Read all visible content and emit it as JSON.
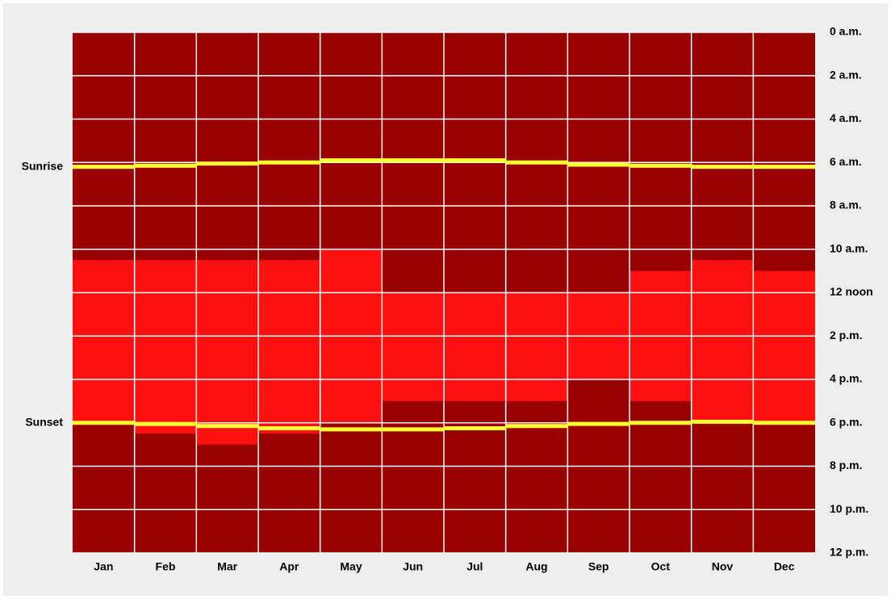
{
  "chart_data": {
    "type": "heatmap",
    "categories": [
      "Jan",
      "Feb",
      "Mar",
      "Apr",
      "May",
      "Jun",
      "Jul",
      "Aug",
      "Sep",
      "Oct",
      "Nov",
      "Dec"
    ],
    "ylim": [
      0,
      24
    ],
    "yticks": [
      {
        "value": 0,
        "label": "0 a.m."
      },
      {
        "value": 2,
        "label": "2 a.m."
      },
      {
        "value": 4,
        "label": "4 a.m."
      },
      {
        "value": 6,
        "label": "6 a.m."
      },
      {
        "value": 8,
        "label": "8 a.m."
      },
      {
        "value": 10,
        "label": "10 a.m."
      },
      {
        "value": 12,
        "label": "12 noon"
      },
      {
        "value": 14,
        "label": "2 p.m."
      },
      {
        "value": 16,
        "label": "4 p.m."
      },
      {
        "value": 18,
        "label": "6 p.m."
      },
      {
        "value": 20,
        "label": "8 p.m."
      },
      {
        "value": 22,
        "label": "10 p.m."
      },
      {
        "value": 24,
        "label": "12 p.m."
      }
    ],
    "background_color": "#990000",
    "grid": true,
    "active_color": "#ff1010",
    "active_from": [
      10.5,
      10.5,
      10.5,
      10.5,
      10,
      12,
      12,
      12,
      12,
      11,
      10.5,
      11
    ],
    "active_to": [
      18,
      18.5,
      19,
      18.5,
      18,
      17,
      17,
      17,
      16,
      17,
      18,
      18
    ],
    "series": [
      {
        "name": "Sunrise",
        "color": "#ffff33",
        "values": [
          6.2,
          6.15,
          6.05,
          6.0,
          5.9,
          5.9,
          5.9,
          6.0,
          6.1,
          6.15,
          6.2,
          6.2
        ]
      },
      {
        "name": "Sunset",
        "color": "#ffff33",
        "values": [
          18.0,
          18.05,
          18.15,
          18.25,
          18.3,
          18.3,
          18.25,
          18.15,
          18.05,
          18.0,
          17.95,
          18.0
        ]
      }
    ]
  }
}
